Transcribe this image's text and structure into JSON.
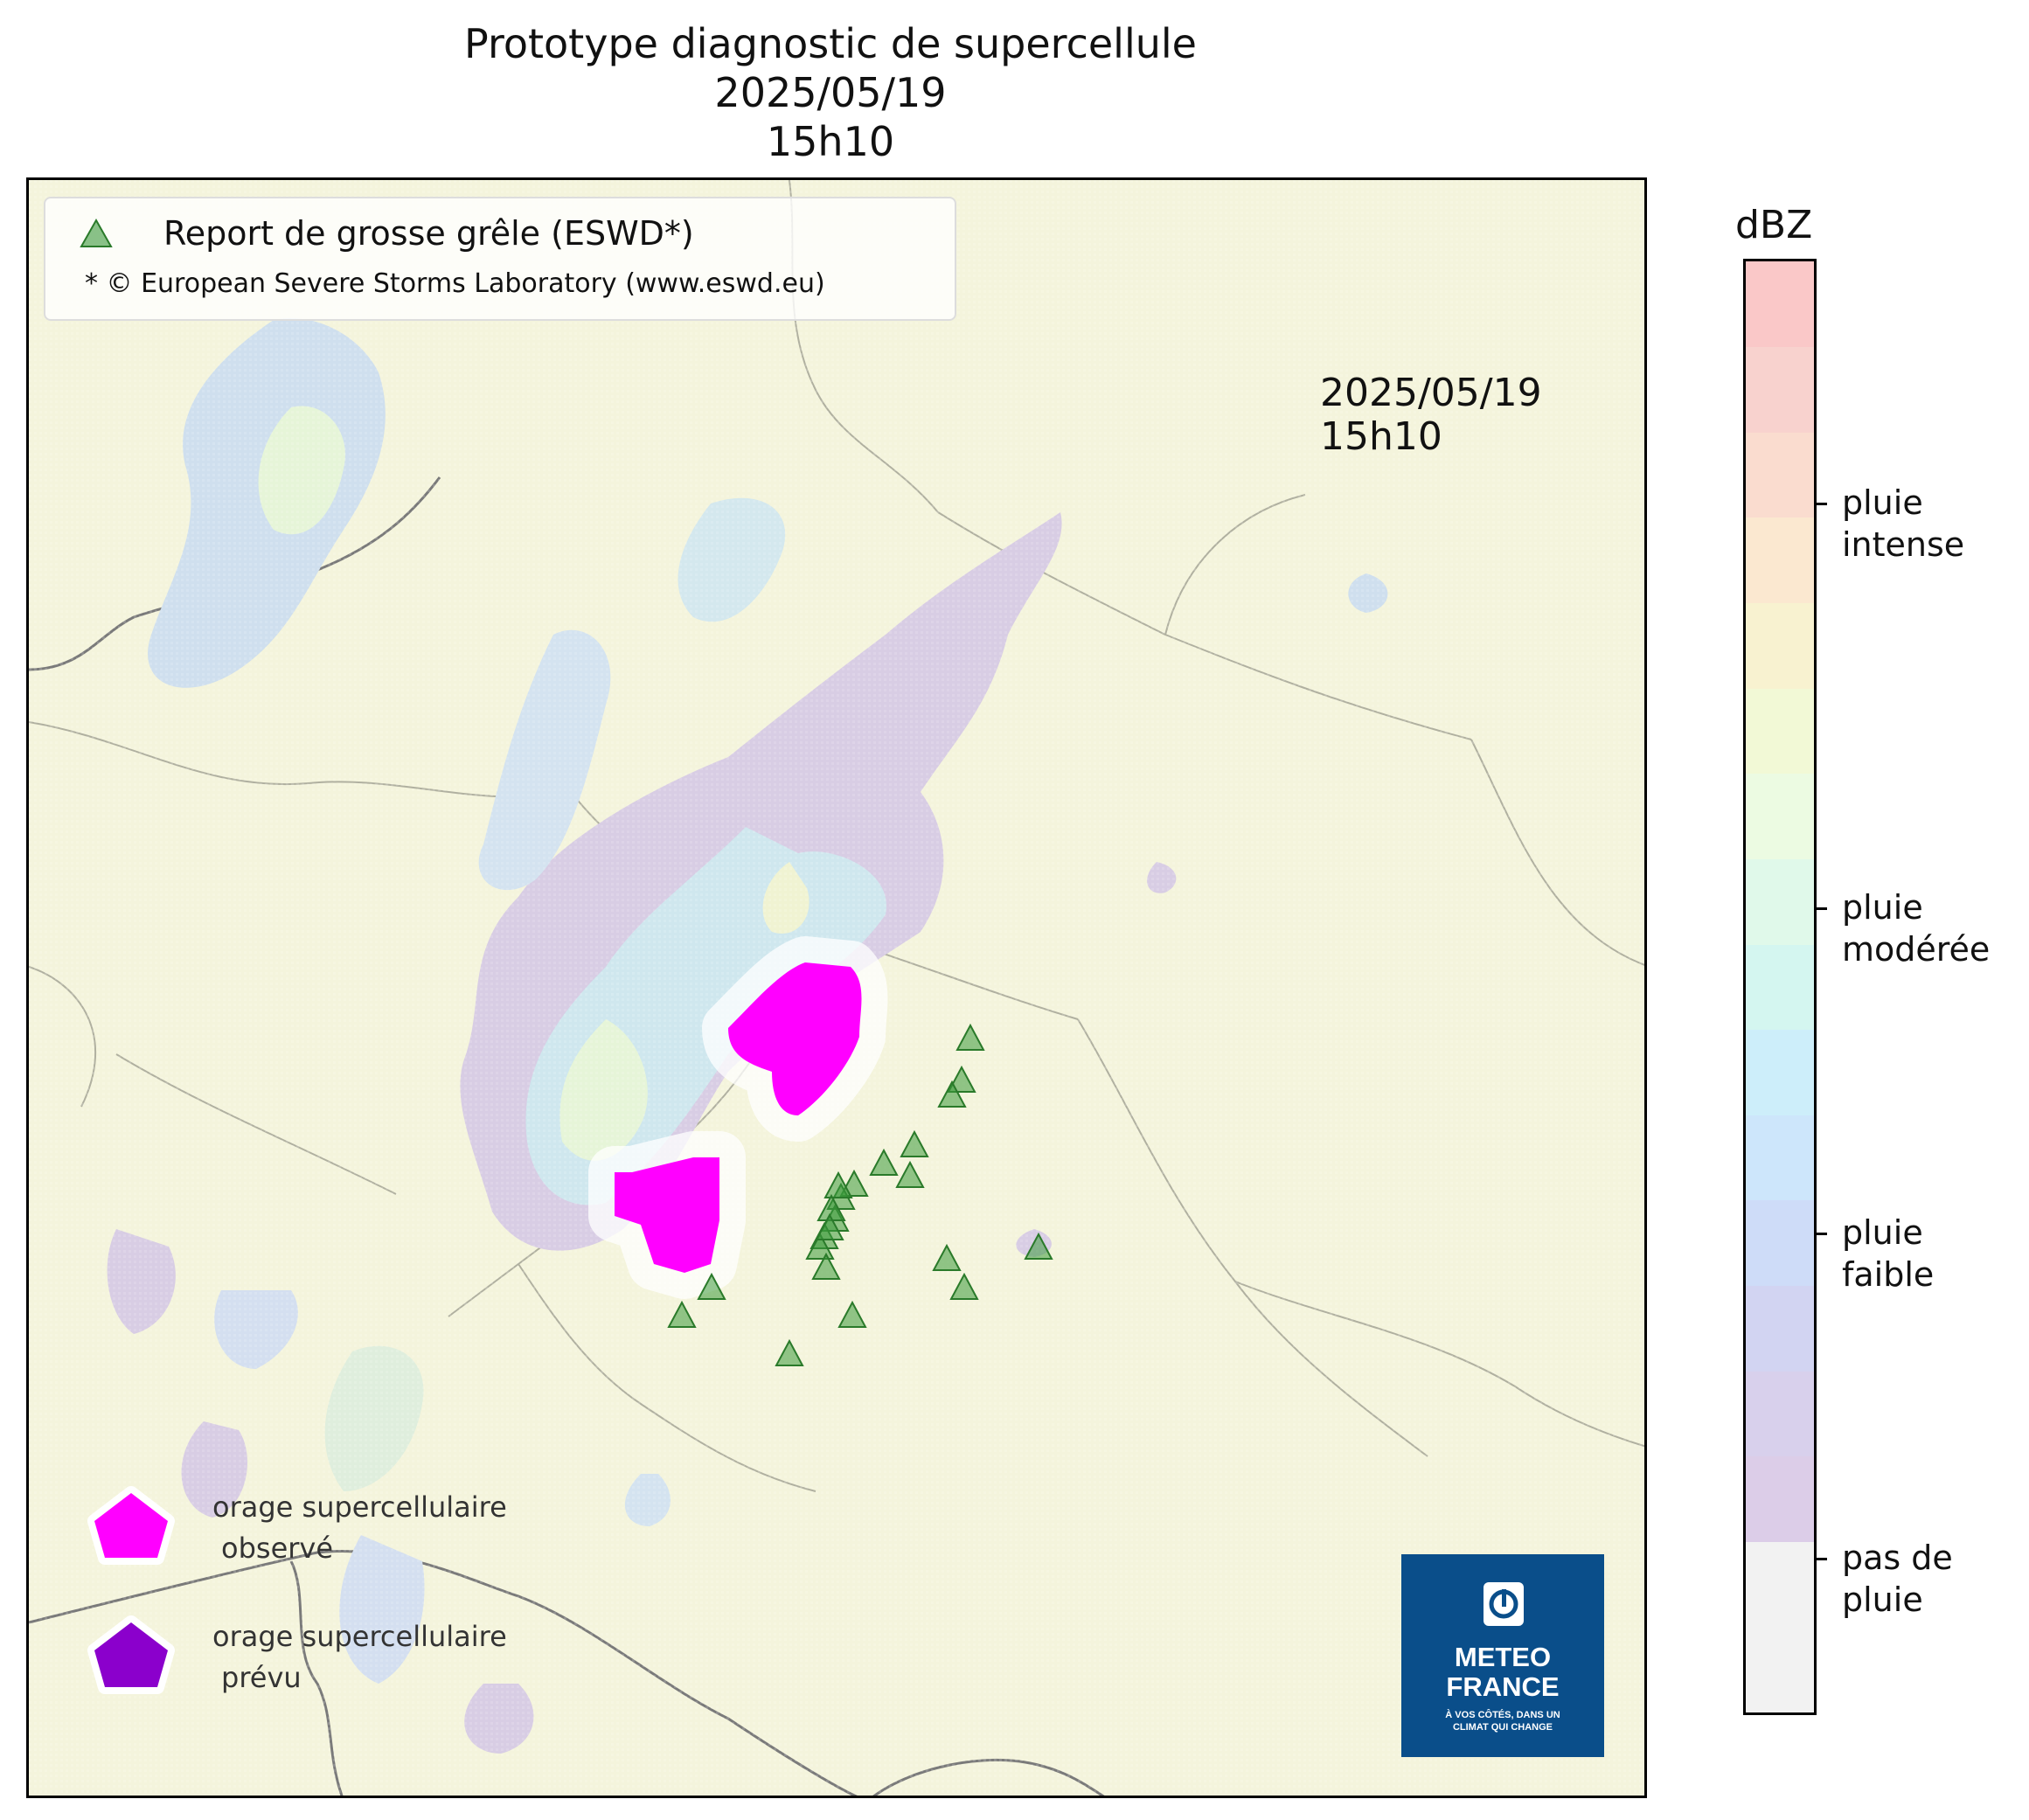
{
  "title": {
    "line1": "Prototype diagnostic de supercellule",
    "line2": "2025/05/19",
    "line3": "15h10"
  },
  "map_stamp": {
    "date": "2025/05/19",
    "time": "15h10"
  },
  "legend": {
    "hail_label": "Report de grosse grêle (ESWD*)",
    "credit": "* © European Severe Storms Laboratory (www.eswd.eu)",
    "hail_color": "#3c9a3c"
  },
  "polygon_legend": {
    "observed_line1": "orage supercellulaire",
    "observed_line2": "observé",
    "observed_color": "#ff00ff",
    "forecast_line1": "orage supercellulaire",
    "forecast_line2": "prévu",
    "forecast_color": "#8b00cc"
  },
  "logo": {
    "line1": "METEO",
    "line2": "FRANCE",
    "tagline1": "À VOS CÔTÉS, DANS UN",
    "tagline2": "CLIMAT QUI CHANGE",
    "color": "#0a4e8a"
  },
  "colorbar": {
    "title": "dBZ",
    "colors": [
      "#f2f2f2",
      "#f2f2f2",
      "#dccde8",
      "#d8d0ec",
      "#d2d4f2",
      "#cedcf8",
      "#cde6fb",
      "#cdeefa",
      "#d4f6f0",
      "#e0f9ea",
      "#ecfbe2",
      "#f2f9d6",
      "#f8f2d0",
      "#fbe8d0",
      "#fadccf",
      "#f8d2ce",
      "#fac8c8"
    ],
    "labels": [
      {
        "line1": "pas de",
        "line2": "pluie"
      },
      {
        "line1": "pluie",
        "line2": "faible"
      },
      {
        "line1": "pluie",
        "line2": "modérée"
      },
      {
        "line1": "pluie",
        "line2": "intense"
      }
    ]
  }
}
